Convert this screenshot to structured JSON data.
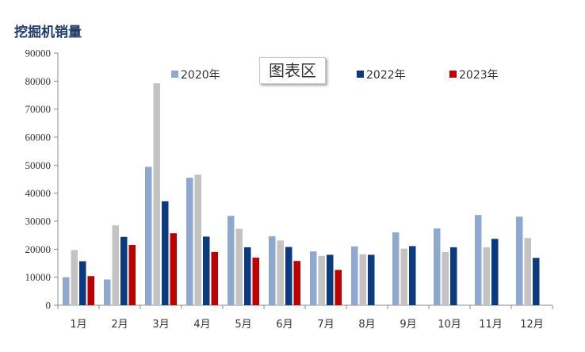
{
  "title": "挖掘机销量",
  "plot_area_label": "图表区",
  "colors": {
    "2020年": "#8ea9cf",
    "2021": "#c3c3c3",
    "2022年": "#0b3a7e",
    "2023年": "#c00000"
  },
  "chart_data": {
    "type": "bar",
    "title": "挖掘机销量",
    "xlabel": "",
    "ylabel": "",
    "ylim": [
      0,
      90000
    ],
    "yticks": [
      0,
      10000,
      20000,
      30000,
      40000,
      50000,
      60000,
      70000,
      80000,
      90000
    ],
    "grid": false,
    "legend_position": "top",
    "categories": [
      "1月",
      "2月",
      "3月",
      "4月",
      "5月",
      "6月",
      "7月",
      "8月",
      "9月",
      "10月",
      "11月",
      "12月"
    ],
    "series": [
      {
        "name": "2020年",
        "color": "#8ea9cf",
        "show_in_legend": true,
        "values": [
          10000,
          9200,
          49400,
          45500,
          31900,
          24600,
          19200,
          21000,
          26000,
          27400,
          32200,
          31600
        ]
      },
      {
        "name": "",
        "color": "#c3c3c3",
        "show_in_legend": false,
        "values": [
          19700,
          28500,
          79200,
          46600,
          27300,
          23100,
          17600,
          18200,
          20200,
          19000,
          20700,
          24000
        ]
      },
      {
        "name": "2022年",
        "color": "#0b3a7e",
        "show_in_legend": true,
        "values": [
          15700,
          24400,
          37100,
          24500,
          20700,
          20800,
          18000,
          18000,
          21100,
          20700,
          23700,
          16900
        ]
      },
      {
        "name": "2023年",
        "color": "#c00000",
        "show_in_legend": true,
        "values": [
          10400,
          21500,
          25700,
          19000,
          17000,
          15800,
          12600,
          null,
          null,
          null,
          null,
          null
        ]
      }
    ]
  }
}
